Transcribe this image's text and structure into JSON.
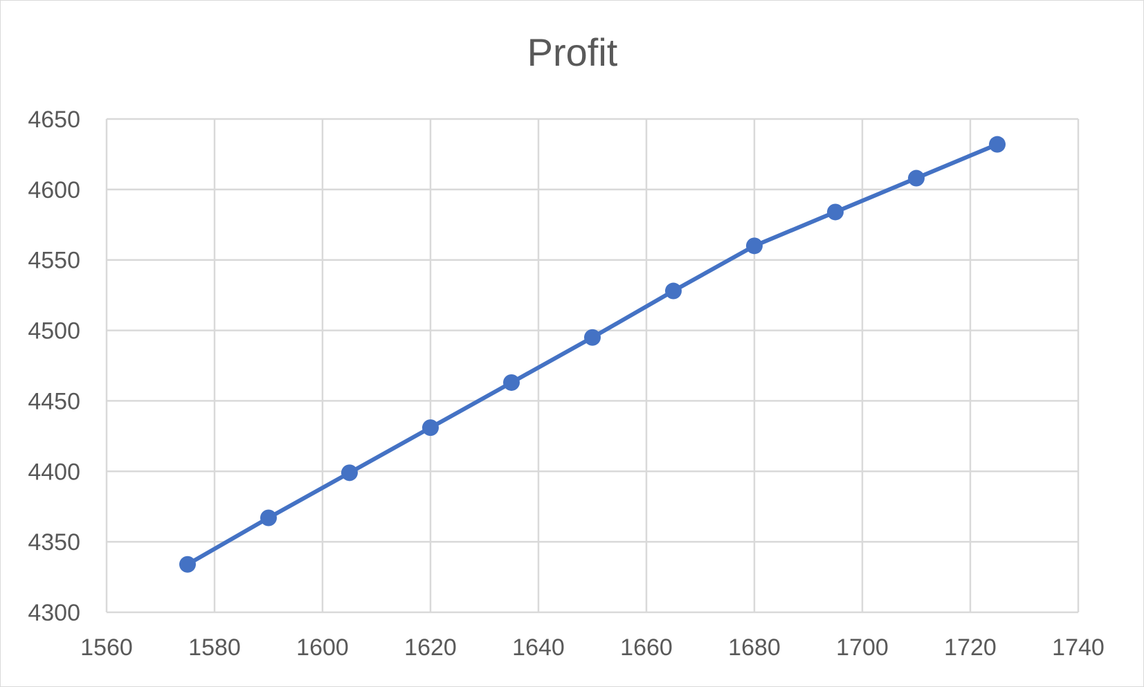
{
  "chart_data": {
    "type": "scatter",
    "title": "Profit",
    "xlabel": "",
    "ylabel": "",
    "xlim": [
      1560,
      1740
    ],
    "ylim": [
      4300,
      4650
    ],
    "x_ticks": [
      1560,
      1580,
      1600,
      1620,
      1640,
      1660,
      1680,
      1700,
      1720,
      1740
    ],
    "y_ticks": [
      4300,
      4350,
      4400,
      4450,
      4500,
      4550,
      4600,
      4650
    ],
    "grid": true,
    "legend": "none",
    "series": [
      {
        "color": "#4472c4",
        "marker": "circle",
        "line": "straight",
        "points": [
          {
            "x": 1575,
            "y": 4334
          },
          {
            "x": 1590,
            "y": 4367
          },
          {
            "x": 1605,
            "y": 4399
          },
          {
            "x": 1620,
            "y": 4431
          },
          {
            "x": 1635,
            "y": 4463
          },
          {
            "x": 1650,
            "y": 4495
          },
          {
            "x": 1665,
            "y": 4528
          },
          {
            "x": 1680,
            "y": 4560
          },
          {
            "x": 1695,
            "y": 4584
          },
          {
            "x": 1710,
            "y": 4608
          },
          {
            "x": 1725,
            "y": 4632
          }
        ]
      }
    ]
  }
}
